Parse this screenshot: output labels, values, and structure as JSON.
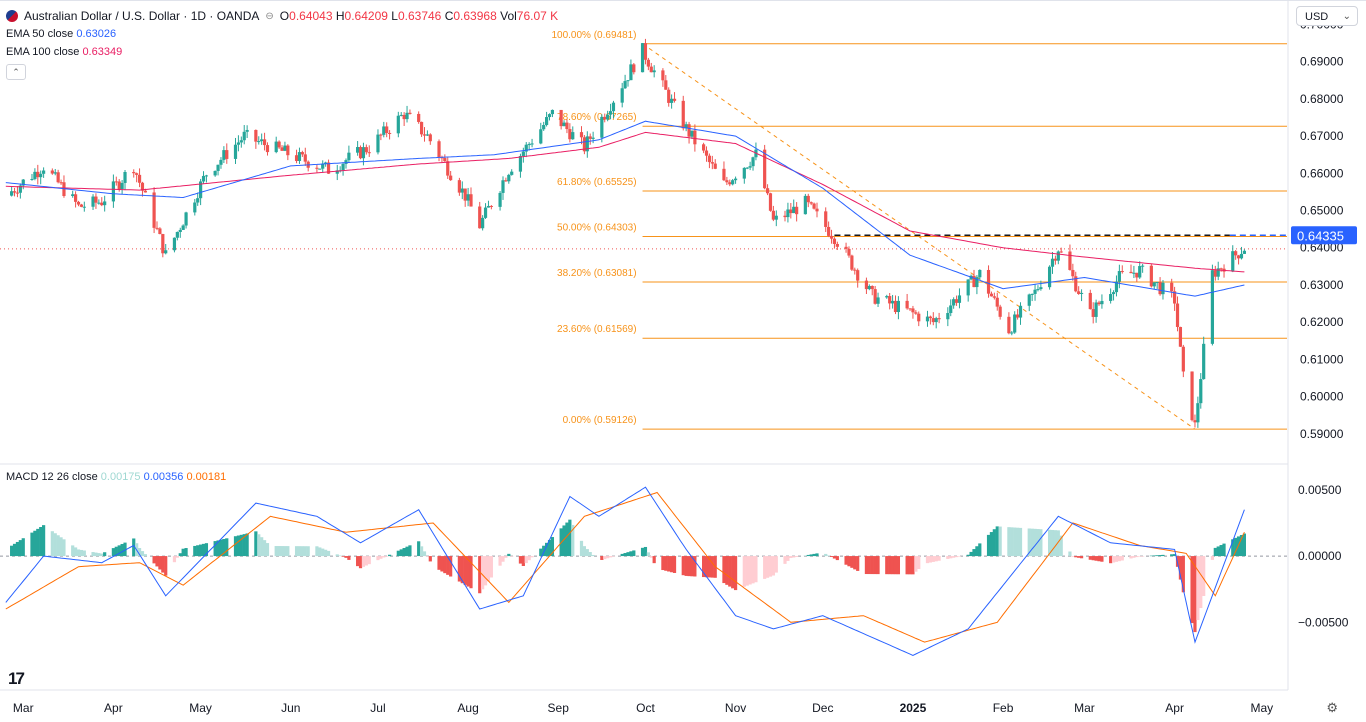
{
  "header": {
    "title": "Australian Dollar / U.S. Dollar · 1D · OANDA",
    "open_label": "O",
    "open": "0.64043",
    "high_label": "H",
    "high": "0.64209",
    "low_label": "L",
    "low": "0.63746",
    "close_label": "C",
    "close": "0.63968",
    "vol_label": "Vol",
    "vol": "76.07 K"
  },
  "indicators": {
    "ema50_label": "EMA 50 close",
    "ema50_value": "0.63026",
    "ema100_label": "EMA 100 close",
    "ema100_value": "0.63349",
    "macd_label": "MACD 12 26 close",
    "macd_hist": "0.00175",
    "macd_line": "0.00356",
    "macd_signal": "0.00181"
  },
  "currency_select": "USD",
  "colors": {
    "up": "#26a69a",
    "down": "#ef5350",
    "ema50": "#2962ff",
    "ema100": "#e91e63",
    "fib": "#f7931a",
    "macd_line": "#2962ff",
    "signal": "#ff6d00",
    "price_tag": "#2962ff",
    "hist_up": "#26a69a",
    "hist_up_light": "#b2dfdb",
    "hist_down": "#ef5350",
    "hist_down_light": "#ffcdd2"
  },
  "chart_data": {
    "type": "candlestick",
    "x_labels": [
      "Mar",
      "Apr",
      "May",
      "Jun",
      "Jul",
      "Aug",
      "Sep",
      "Oct",
      "Nov",
      "Dec",
      "2025",
      "Feb",
      "Mar",
      "Apr",
      "May"
    ],
    "price_axis_ticks": [
      "0.70000",
      "0.69000",
      "0.68000",
      "0.67000",
      "0.66000",
      "0.65000",
      "0.64000",
      "0.63000",
      "0.62000",
      "0.61000",
      "0.60000",
      "0.59000"
    ],
    "price_range": [
      0.5835,
      0.7012
    ],
    "current_price_tag": "0.64335",
    "fibonacci": [
      {
        "label": "100.00% (0.69481)",
        "value": 0.69481
      },
      {
        "label": "78.60% (0.67265)",
        "value": 0.67265
      },
      {
        "label": "61.80% (0.65525)",
        "value": 0.65525
      },
      {
        "label": "50.00% (0.64303)",
        "value": 0.64303
      },
      {
        "label": "38.20% (0.63081)",
        "value": 0.63081
      },
      {
        "label": "23.60% (0.61569)",
        "value": 0.61569
      },
      {
        "label": "0.00% (0.59126)",
        "value": 0.59126
      }
    ],
    "price_path": [
      [
        "2024-02-24",
        0.654
      ],
      [
        "2024-03-08",
        0.662
      ],
      [
        "2024-03-20",
        0.651
      ],
      [
        "2024-03-28",
        0.6525
      ],
      [
        "2024-04-08",
        0.662
      ],
      [
        "2024-04-19",
        0.638
      ],
      [
        "2024-05-03",
        0.66
      ],
      [
        "2024-05-16",
        0.67
      ],
      [
        "2024-06-01",
        0.665
      ],
      [
        "2024-06-14",
        0.661
      ],
      [
        "2024-06-28",
        0.667
      ],
      [
        "2024-07-10",
        0.676
      ],
      [
        "2024-07-18",
        0.67
      ],
      [
        "2024-07-31",
        0.654
      ],
      [
        "2024-08-05",
        0.646
      ],
      [
        "2024-08-15",
        0.661
      ],
      [
        "2024-08-30",
        0.676
      ],
      [
        "2024-09-10",
        0.667
      ],
      [
        "2024-09-30",
        0.693
      ],
      [
        "2024-10-15",
        0.672
      ],
      [
        "2024-10-28",
        0.657
      ],
      [
        "2024-11-08",
        0.665
      ],
      [
        "2024-11-14",
        0.647
      ],
      [
        "2024-11-25",
        0.652
      ],
      [
        "2024-12-05",
        0.643
      ],
      [
        "2024-12-18",
        0.627
      ],
      [
        "2025-01-08",
        0.62
      ],
      [
        "2025-01-24",
        0.633
      ],
      [
        "2025-02-03",
        0.618
      ],
      [
        "2025-02-12",
        0.628
      ],
      [
        "2025-02-20",
        0.64
      ],
      [
        "2025-03-03",
        0.622
      ],
      [
        "2025-03-13",
        0.632
      ],
      [
        "2025-03-20",
        0.634
      ],
      [
        "2025-04-01",
        0.626
      ],
      [
        "2025-04-04",
        0.605
      ],
      [
        "2025-04-08",
        0.592
      ],
      [
        "2025-04-14",
        0.633
      ],
      [
        "2025-04-25",
        0.64
      ]
    ],
    "ema50_path": [
      [
        "2024-02-24",
        0.6575
      ],
      [
        "2024-04-01",
        0.6545
      ],
      [
        "2024-04-25",
        0.6535
      ],
      [
        "2024-06-01",
        0.662
      ],
      [
        "2024-07-15",
        0.664
      ],
      [
        "2024-08-10",
        0.665
      ],
      [
        "2024-09-15",
        0.669
      ],
      [
        "2024-10-01",
        0.674
      ],
      [
        "2024-11-01",
        0.67
      ],
      [
        "2024-12-01",
        0.656
      ],
      [
        "2024-12-31",
        0.638
      ],
      [
        "2025-02-01",
        0.629
      ],
      [
        "2025-03-01",
        0.632
      ],
      [
        "2025-04-08",
        0.627
      ],
      [
        "2025-04-25",
        0.63
      ]
    ],
    "ema100_path": [
      [
        "2024-02-24",
        0.6565
      ],
      [
        "2024-04-10",
        0.6555
      ],
      [
        "2024-06-01",
        0.6595
      ],
      [
        "2024-07-15",
        0.6625
      ],
      [
        "2024-08-15",
        0.664
      ],
      [
        "2024-09-15",
        0.667
      ],
      [
        "2024-10-01",
        0.671
      ],
      [
        "2024-11-01",
        0.668
      ],
      [
        "2024-12-01",
        0.657
      ],
      [
        "2024-12-31",
        0.6445
      ],
      [
        "2025-02-01",
        0.64
      ],
      [
        "2025-03-01",
        0.6375
      ],
      [
        "2025-04-08",
        0.6345
      ],
      [
        "2025-04-25",
        0.6335
      ]
    ],
    "macd_axis_ticks": [
      "0.00500",
      "0.00000",
      "−0.00500"
    ],
    "macd_range": [
      -0.008,
      0.0065
    ],
    "macd_path": [
      [
        "2024-02-24",
        -0.0035
      ],
      [
        "2024-03-08",
        0.0
      ],
      [
        "2024-03-28",
        -0.0005
      ],
      [
        "2024-04-08",
        0.0008
      ],
      [
        "2024-04-19",
        -0.003
      ],
      [
        "2024-05-20",
        0.004
      ],
      [
        "2024-06-10",
        0.003
      ],
      [
        "2024-06-25",
        0.001
      ],
      [
        "2024-07-15",
        0.0035
      ],
      [
        "2024-08-05",
        -0.004
      ],
      [
        "2024-08-20",
        -0.003
      ],
      [
        "2024-09-05",
        0.0045
      ],
      [
        "2024-09-15",
        0.003
      ],
      [
        "2024-10-01",
        0.0052
      ],
      [
        "2024-10-15",
        0.0005
      ],
      [
        "2024-11-01",
        -0.0045
      ],
      [
        "2024-11-14",
        -0.0055
      ],
      [
        "2024-12-01",
        -0.0045
      ],
      [
        "2025-01-01",
        -0.0075
      ],
      [
        "2025-01-20",
        -0.0055
      ],
      [
        "2025-02-20",
        0.003
      ],
      [
        "2025-03-10",
        0.001
      ],
      [
        "2025-04-01",
        0.0005
      ],
      [
        "2025-04-08",
        -0.0065
      ],
      [
        "2025-04-25",
        0.0035
      ]
    ],
    "signal_path": [
      [
        "2024-02-24",
        -0.004
      ],
      [
        "2024-03-20",
        -0.0008
      ],
      [
        "2024-04-10",
        -0.0005
      ],
      [
        "2024-04-25",
        -0.0022
      ],
      [
        "2024-05-25",
        0.003
      ],
      [
        "2024-06-20",
        0.0018
      ],
      [
        "2024-07-20",
        0.0025
      ],
      [
        "2024-08-15",
        -0.0035
      ],
      [
        "2024-09-10",
        0.003
      ],
      [
        "2024-10-05",
        0.0048
      ],
      [
        "2024-10-25",
        -0.0008
      ],
      [
        "2024-11-20",
        -0.005
      ],
      [
        "2024-12-15",
        -0.0045
      ],
      [
        "2025-01-05",
        -0.0065
      ],
      [
        "2025-01-30",
        -0.005
      ],
      [
        "2025-02-25",
        0.0025
      ],
      [
        "2025-03-20",
        0.0008
      ],
      [
        "2025-04-05",
        0.0002
      ],
      [
        "2025-04-15",
        -0.003
      ],
      [
        "2025-04-25",
        0.0018
      ]
    ]
  }
}
